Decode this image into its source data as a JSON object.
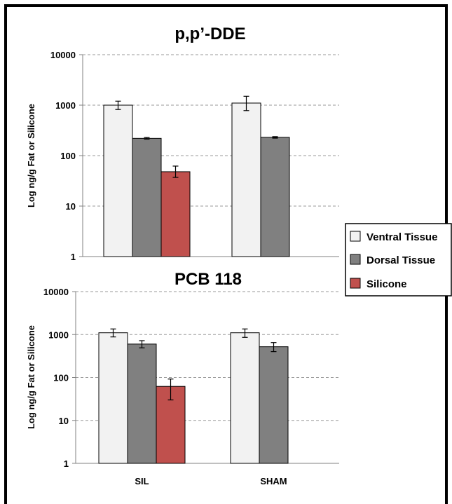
{
  "chart_data": [
    {
      "type": "bar",
      "title": "p,p’-DDE",
      "ylabel": "Log ng/g Fat or Silicone",
      "yscale": "log",
      "ylim": [
        1,
        10000
      ],
      "yticks": [
        "1",
        "10",
        "100",
        "1000",
        "10000"
      ],
      "grid": true,
      "categories": [
        "SIL",
        "SHAM"
      ],
      "series": [
        {
          "name": "Ventral Tissue",
          "color": "#f2f2f2",
          "values": [
            1000,
            1100
          ],
          "err_low": [
            820,
            780
          ],
          "err_high": [
            1200,
            1500
          ]
        },
        {
          "name": "Dorsal Tissue",
          "color": "#808080",
          "values": [
            220,
            230
          ],
          "err_low": [
            212,
            222
          ],
          "err_high": [
            228,
            238
          ]
        },
        {
          "name": "Silicone",
          "color": "#c0504d",
          "values": [
            48,
            null
          ],
          "err_low": [
            37,
            null
          ],
          "err_high": [
            62,
            null
          ]
        }
      ]
    },
    {
      "type": "bar",
      "title": "PCB 118",
      "ylabel": "Log ng/g Fat or Silicone",
      "yscale": "log",
      "ylim": [
        1,
        10000
      ],
      "yticks": [
        "1",
        "10",
        "100",
        "1000",
        "10000"
      ],
      "grid": true,
      "categories": [
        "SIL",
        "SHAM"
      ],
      "series": [
        {
          "name": "Ventral Tissue",
          "color": "#f2f2f2",
          "values": [
            1100,
            1100
          ],
          "err_low": [
            880,
            860
          ],
          "err_high": [
            1350,
            1350
          ]
        },
        {
          "name": "Dorsal Tissue",
          "color": "#808080",
          "values": [
            600,
            520
          ],
          "err_low": [
            490,
            400
          ],
          "err_high": [
            720,
            650
          ]
        },
        {
          "name": "Silicone",
          "color": "#c0504d",
          "values": [
            62,
            null
          ],
          "err_low": [
            30,
            null
          ],
          "err_high": [
            92,
            null
          ]
        }
      ]
    }
  ],
  "legend": {
    "position": "right",
    "items": [
      {
        "label": "Ventral Tissue",
        "color": "#f2f2f2"
      },
      {
        "label": "Dorsal Tissue",
        "color": "#808080"
      },
      {
        "label": "Silicone",
        "color": "#c0504d"
      }
    ]
  }
}
